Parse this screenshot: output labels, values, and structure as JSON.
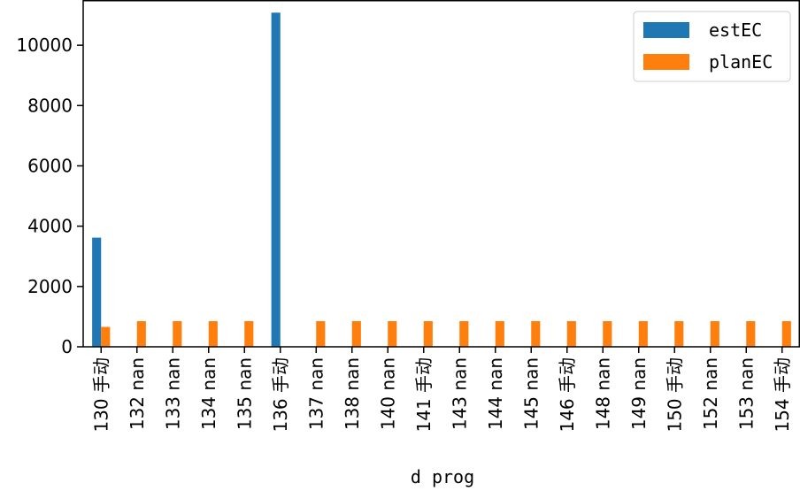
{
  "chart_data": {
    "type": "bar",
    "xlabel": "d prog",
    "ylabel": "",
    "ylim": [
      0,
      11500
    ],
    "yticks": [
      0,
      2000,
      4000,
      6000,
      8000,
      10000
    ],
    "categories": [
      "130 手动",
      "132 nan",
      "133 nan",
      "134 nan",
      "135 nan",
      "136 手动",
      "137 nan",
      "138 nan",
      "140 nan",
      "141 手动",
      "143 nan",
      "144 nan",
      "145 nan",
      "146 手动",
      "148 nan",
      "149 nan",
      "150 手动",
      "152 nan",
      "153 nan",
      "154 手动"
    ],
    "series": [
      {
        "name": "estEC",
        "color": "#1f77b4",
        "values": [
          3620,
          0,
          0,
          0,
          0,
          11080,
          0,
          0,
          0,
          0,
          0,
          0,
          0,
          0,
          0,
          0,
          0,
          0,
          0,
          0
        ]
      },
      {
        "name": "planEC",
        "color": "#ff7f0e",
        "values": [
          660,
          850,
          850,
          850,
          850,
          0,
          850,
          850,
          850,
          850,
          850,
          850,
          850,
          850,
          850,
          850,
          850,
          850,
          850,
          850
        ]
      }
    ],
    "legend": "top-right",
    "grid": false
  }
}
